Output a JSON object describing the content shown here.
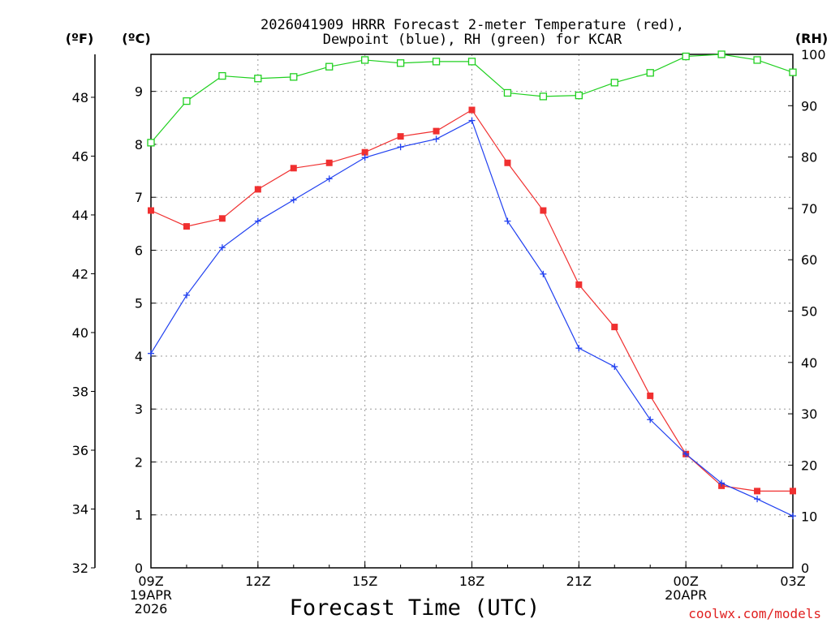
{
  "chart_data": {
    "type": "line",
    "title": "2026041909 HRRR Forecast 2-meter Temperature (red),",
    "subtitle": "Dewpoint (blue), RH (green) for KCAR",
    "xlabel": "Forecast Time (UTC)",
    "credit": "coolwx.com/models",
    "units": {
      "fahrenheit": "(ºF)",
      "celsius": "(ºC)",
      "rh": "(RH)"
    },
    "x": [
      0,
      1,
      2,
      3,
      4,
      5,
      6,
      7,
      8,
      9,
      10,
      11,
      12,
      13,
      14,
      15,
      16,
      17,
      18
    ],
    "xlim": [
      0,
      18
    ],
    "x_ticks": [
      {
        "x": 0,
        "lines": [
          "09Z",
          "19APR",
          "2026"
        ]
      },
      {
        "x": 3,
        "lines": [
          "12Z"
        ]
      },
      {
        "x": 6,
        "lines": [
          "15Z"
        ]
      },
      {
        "x": 9,
        "lines": [
          "18Z"
        ]
      },
      {
        "x": 12,
        "lines": [
          "21Z"
        ]
      },
      {
        "x": 15,
        "lines": [
          "00Z",
          "20APR"
        ]
      },
      {
        "x": 18,
        "lines": [
          "03Z"
        ]
      }
    ],
    "ylim_celsius": [
      0,
      9.7
    ],
    "ylim_rh": [
      0,
      100
    ],
    "ylim_fahrenheit": [
      32,
      49.46
    ],
    "celsius_ticks": [
      "0",
      "1",
      "2",
      "3",
      "4",
      "5",
      "6",
      "7",
      "8",
      "9"
    ],
    "fahrenheit_ticks": [
      "32",
      "34",
      "36",
      "38",
      "40",
      "42",
      "44",
      "46",
      "48"
    ],
    "rh_ticks": [
      "0",
      "10",
      "20",
      "30",
      "40",
      "50",
      "60",
      "70",
      "80",
      "90",
      "100"
    ],
    "grid": true,
    "series": [
      {
        "name": "Temperature",
        "axis": "celsius",
        "color": "#f03030",
        "marker": "filled-square",
        "values": [
          6.75,
          6.45,
          6.6,
          7.15,
          7.55,
          7.65,
          7.85,
          8.15,
          8.25,
          8.65,
          7.65,
          6.75,
          5.35,
          4.55,
          3.25,
          2.15,
          1.55,
          1.45,
          1.45
        ]
      },
      {
        "name": "Dewpoint",
        "axis": "celsius",
        "color": "#2040f0",
        "marker": "plus",
        "values": [
          4.05,
          5.15,
          6.05,
          6.55,
          6.95,
          7.35,
          7.75,
          7.95,
          8.1,
          8.45,
          6.55,
          5.55,
          4.15,
          3.8,
          2.8,
          2.15,
          1.6,
          1.3,
          0.98
        ]
      },
      {
        "name": "RH",
        "axis": "rh",
        "color": "#20d020",
        "marker": "open-square",
        "values": [
          82.8,
          90.9,
          95.8,
          95.3,
          95.6,
          97.6,
          98.9,
          98.3,
          98.6,
          98.6,
          92.5,
          91.8,
          92.0,
          94.5,
          96.4,
          99.6,
          100.2,
          98.9,
          96.5
        ]
      }
    ]
  }
}
